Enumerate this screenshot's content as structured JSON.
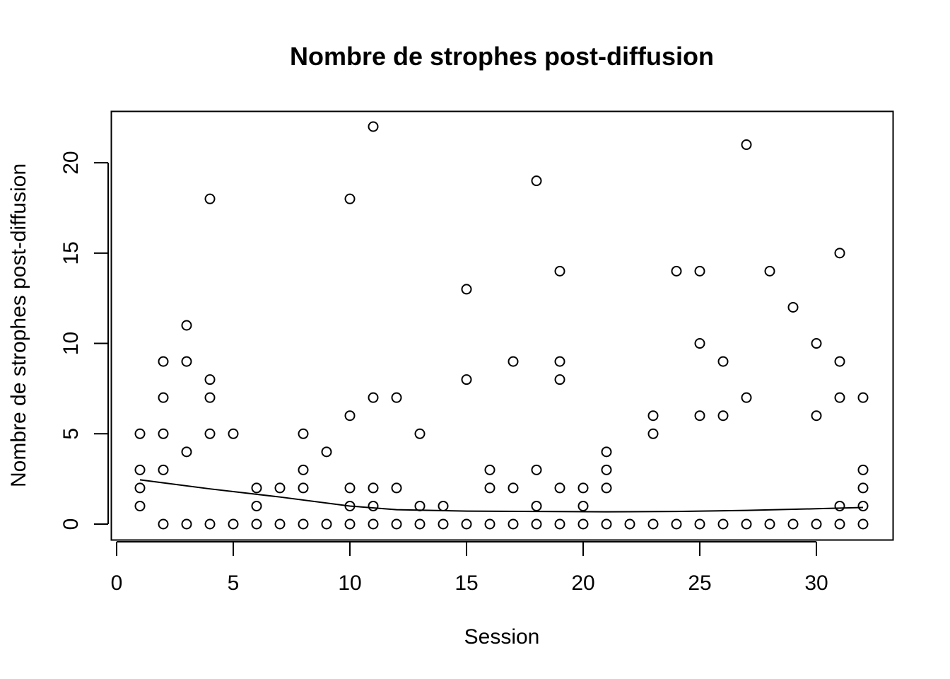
{
  "chart_data": {
    "type": "scatter",
    "title": "Nombre de strophes post-diffusion",
    "xlabel": "Session",
    "ylabel": "Nombre de strophes post-diffusion",
    "xlim": [
      0,
      32
    ],
    "ylim": [
      0,
      22
    ],
    "xticks": [
      0,
      5,
      10,
      15,
      20,
      25,
      30
    ],
    "yticks": [
      0,
      5,
      10,
      15,
      20
    ],
    "grid": false,
    "marker": "open-circle",
    "colors": {
      "points": "#000000",
      "line": "#000000",
      "frame": "#000000"
    },
    "points": [
      [
        1,
        5
      ],
      [
        1,
        3
      ],
      [
        1,
        2
      ],
      [
        1,
        1
      ],
      [
        2,
        9
      ],
      [
        2,
        7
      ],
      [
        2,
        5
      ],
      [
        2,
        3
      ],
      [
        2,
        0
      ],
      [
        3,
        11
      ],
      [
        3,
        9
      ],
      [
        3,
        4
      ],
      [
        3,
        0
      ],
      [
        4,
        18
      ],
      [
        4,
        8
      ],
      [
        4,
        7
      ],
      [
        4,
        5
      ],
      [
        4,
        0
      ],
      [
        5,
        5
      ],
      [
        5,
        0
      ],
      [
        6,
        2
      ],
      [
        6,
        1
      ],
      [
        6,
        0
      ],
      [
        7,
        2
      ],
      [
        7,
        0
      ],
      [
        8,
        5
      ],
      [
        8,
        3
      ],
      [
        8,
        2
      ],
      [
        8,
        0
      ],
      [
        9,
        4
      ],
      [
        9,
        0
      ],
      [
        10,
        18
      ],
      [
        10,
        6
      ],
      [
        10,
        2
      ],
      [
        10,
        1
      ],
      [
        10,
        0
      ],
      [
        11,
        22
      ],
      [
        11,
        7
      ],
      [
        11,
        2
      ],
      [
        11,
        1
      ],
      [
        11,
        0
      ],
      [
        12,
        7
      ],
      [
        12,
        2
      ],
      [
        12,
        0
      ],
      [
        13,
        5
      ],
      [
        13,
        1
      ],
      [
        13,
        0
      ],
      [
        14,
        1
      ],
      [
        14,
        0
      ],
      [
        15,
        13
      ],
      [
        15,
        8
      ],
      [
        15,
        0
      ],
      [
        16,
        3
      ],
      [
        16,
        2
      ],
      [
        16,
        0
      ],
      [
        17,
        9
      ],
      [
        17,
        2
      ],
      [
        17,
        0
      ],
      [
        18,
        19
      ],
      [
        18,
        3
      ],
      [
        18,
        1
      ],
      [
        18,
        0
      ],
      [
        19,
        14
      ],
      [
        19,
        9
      ],
      [
        19,
        8
      ],
      [
        19,
        2
      ],
      [
        19,
        0
      ],
      [
        20,
        2
      ],
      [
        20,
        1
      ],
      [
        20,
        0
      ],
      [
        21,
        4
      ],
      [
        21,
        3
      ],
      [
        21,
        2
      ],
      [
        21,
        0
      ],
      [
        22,
        0
      ],
      [
        23,
        6
      ],
      [
        23,
        5
      ],
      [
        23,
        0
      ],
      [
        24,
        14
      ],
      [
        24,
        0
      ],
      [
        25,
        14
      ],
      [
        25,
        10
      ],
      [
        25,
        6
      ],
      [
        25,
        0
      ],
      [
        26,
        9
      ],
      [
        26,
        6
      ],
      [
        26,
        0
      ],
      [
        27,
        21
      ],
      [
        27,
        7
      ],
      [
        27,
        0
      ],
      [
        28,
        14
      ],
      [
        28,
        0
      ],
      [
        29,
        12
      ],
      [
        29,
        0
      ],
      [
        30,
        10
      ],
      [
        30,
        6
      ],
      [
        30,
        0
      ],
      [
        31,
        15
      ],
      [
        31,
        9
      ],
      [
        31,
        7
      ],
      [
        31,
        1
      ],
      [
        31,
        0
      ],
      [
        32,
        7
      ],
      [
        32,
        3
      ],
      [
        32,
        2
      ],
      [
        32,
        1
      ],
      [
        32,
        0
      ]
    ],
    "trend_line": {
      "x": [
        1,
        4,
        7,
        10,
        12,
        15,
        18,
        21,
        24,
        27,
        30,
        32
      ],
      "y": [
        2.45,
        1.95,
        1.5,
        1.0,
        0.8,
        0.72,
        0.7,
        0.68,
        0.7,
        0.76,
        0.85,
        0.92
      ]
    }
  }
}
